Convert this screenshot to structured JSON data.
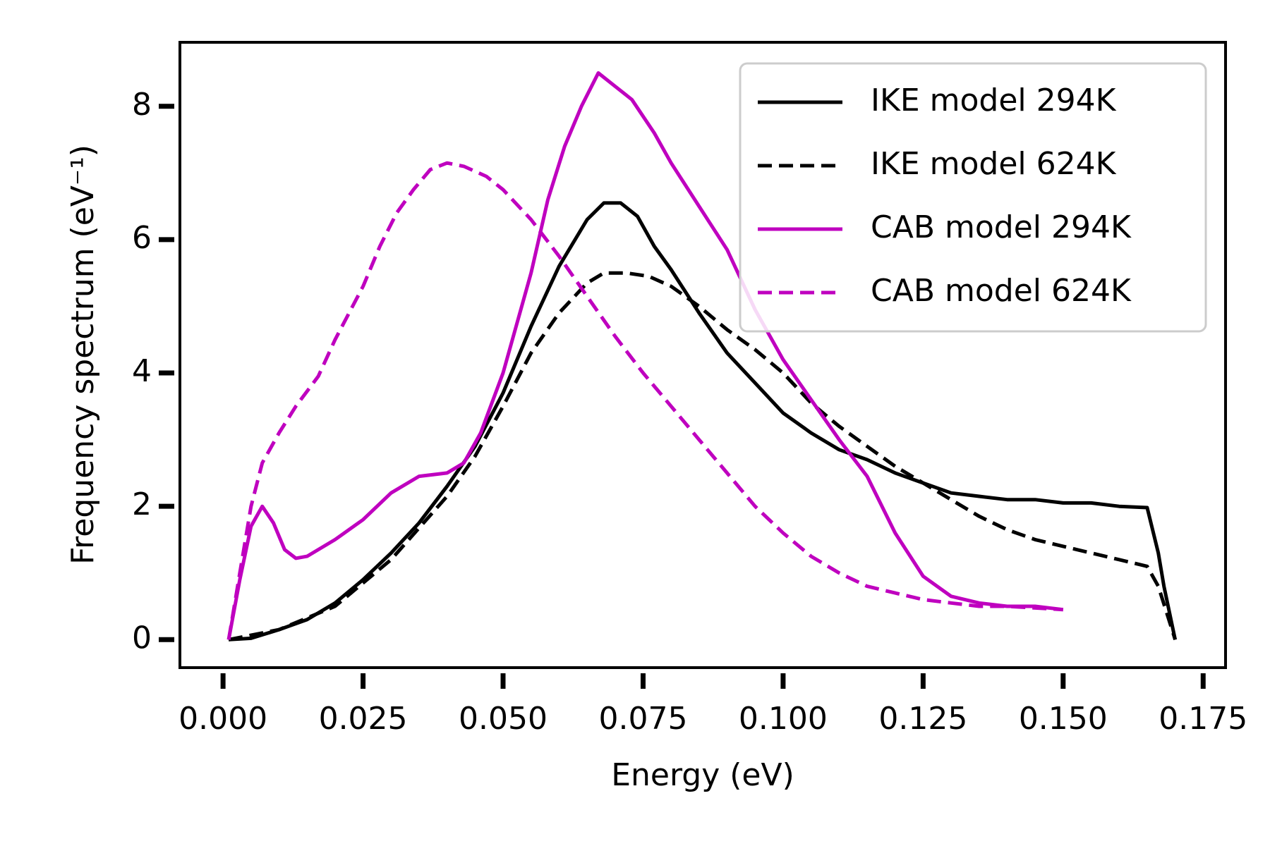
{
  "chart_data": {
    "type": "line",
    "xlabel": "Energy (eV)",
    "ylabel": "Frequency spectrum (eV⁻¹)",
    "xlim": [
      -0.0077,
      0.179
    ],
    "ylim": [
      -0.42,
      8.96
    ],
    "xticks": [
      {
        "value": 0,
        "label": "0.000"
      },
      {
        "value": 0.025,
        "label": "0.025"
      },
      {
        "value": 0.05,
        "label": "0.050"
      },
      {
        "value": 0.075,
        "label": "0.075"
      },
      {
        "value": 0.1,
        "label": "0.100"
      },
      {
        "value": 0.125,
        "label": "0.125"
      },
      {
        "value": 0.15,
        "label": "0.150"
      },
      {
        "value": 0.175,
        "label": "0.175"
      }
    ],
    "yticks": [
      0,
      2,
      4,
      6,
      8
    ],
    "legend": "upper right",
    "series": [
      {
        "name": "IKE model 294K",
        "color": "#000000",
        "linestyle": "solid",
        "x": [
          0.001,
          0.005,
          0.01,
          0.015,
          0.02,
          0.025,
          0.03,
          0.035,
          0.04,
          0.045,
          0.05,
          0.055,
          0.06,
          0.065,
          0.068,
          0.071,
          0.074,
          0.077,
          0.08,
          0.085,
          0.09,
          0.095,
          0.1,
          0.105,
          0.11,
          0.115,
          0.12,
          0.125,
          0.13,
          0.135,
          0.14,
          0.145,
          0.15,
          0.155,
          0.16,
          0.165,
          0.167,
          0.168,
          0.17
        ],
        "values": [
          0,
          0.02,
          0.15,
          0.3,
          0.55,
          0.9,
          1.3,
          1.75,
          2.3,
          2.9,
          3.7,
          4.7,
          5.6,
          6.3,
          6.55,
          6.55,
          6.35,
          5.9,
          5.55,
          4.9,
          4.3,
          3.85,
          3.4,
          3.1,
          2.85,
          2.7,
          2.5,
          2.35,
          2.2,
          2.15,
          2.1,
          2.1,
          2.05,
          2.05,
          2.0,
          1.98,
          1.3,
          0.8,
          0
        ]
      },
      {
        "name": "IKE model 624K",
        "color": "#000000",
        "linestyle": "dashed",
        "x": [
          0.001,
          0.01,
          0.02,
          0.03,
          0.04,
          0.045,
          0.05,
          0.055,
          0.06,
          0.065,
          0.068,
          0.072,
          0.076,
          0.08,
          0.085,
          0.09,
          0.095,
          0.1,
          0.105,
          0.11,
          0.115,
          0.12,
          0.125,
          0.13,
          0.135,
          0.14,
          0.145,
          0.15,
          0.155,
          0.16,
          0.165,
          0.167,
          0.17
        ],
        "values": [
          0,
          0.15,
          0.5,
          1.2,
          2.15,
          2.75,
          3.5,
          4.3,
          4.9,
          5.35,
          5.5,
          5.5,
          5.45,
          5.3,
          5.0,
          4.65,
          4.35,
          4.0,
          3.55,
          3.2,
          2.9,
          2.6,
          2.35,
          2.1,
          1.85,
          1.65,
          1.5,
          1.4,
          1.3,
          1.2,
          1.1,
          0.8,
          0
        ]
      },
      {
        "name": "CAB model 294K",
        "color": "#bf00bf",
        "linestyle": "solid",
        "x": [
          0.001,
          0.003,
          0.005,
          0.007,
          0.009,
          0.011,
          0.013,
          0.015,
          0.02,
          0.025,
          0.03,
          0.035,
          0.04,
          0.043,
          0.046,
          0.05,
          0.055,
          0.058,
          0.061,
          0.064,
          0.067,
          0.07,
          0.073,
          0.077,
          0.08,
          0.085,
          0.09,
          0.095,
          0.1,
          0.105,
          0.11,
          0.115,
          0.12,
          0.125,
          0.13,
          0.135,
          0.14,
          0.145,
          0.15
        ],
        "values": [
          0,
          0.9,
          1.7,
          2.0,
          1.75,
          1.35,
          1.22,
          1.25,
          1.5,
          1.8,
          2.2,
          2.45,
          2.5,
          2.65,
          3.1,
          4.0,
          5.5,
          6.6,
          7.4,
          8.0,
          8.5,
          8.3,
          8.1,
          7.6,
          7.15,
          6.5,
          5.85,
          4.95,
          4.2,
          3.6,
          3.0,
          2.45,
          1.6,
          0.95,
          0.65,
          0.55,
          0.5,
          0.5,
          0.45
        ]
      },
      {
        "name": "CAB model 624K",
        "color": "#bf00bf",
        "linestyle": "dashed",
        "x": [
          0.001,
          0.003,
          0.005,
          0.007,
          0.01,
          0.013,
          0.017,
          0.02,
          0.025,
          0.028,
          0.031,
          0.034,
          0.037,
          0.04,
          0.043,
          0.047,
          0.05,
          0.055,
          0.06,
          0.065,
          0.07,
          0.075,
          0.08,
          0.085,
          0.09,
          0.095,
          0.1,
          0.105,
          0.11,
          0.115,
          0.12,
          0.125,
          0.13,
          0.135,
          0.14,
          0.15
        ],
        "values": [
          0,
          1.0,
          2.0,
          2.65,
          3.1,
          3.5,
          3.95,
          4.5,
          5.3,
          5.9,
          6.4,
          6.75,
          7.05,
          7.15,
          7.1,
          6.95,
          6.75,
          6.3,
          5.75,
          5.15,
          4.55,
          4.0,
          3.5,
          3.0,
          2.5,
          2.0,
          1.6,
          1.25,
          1.0,
          0.8,
          0.7,
          0.6,
          0.55,
          0.5,
          0.5,
          0.45
        ]
      }
    ]
  }
}
